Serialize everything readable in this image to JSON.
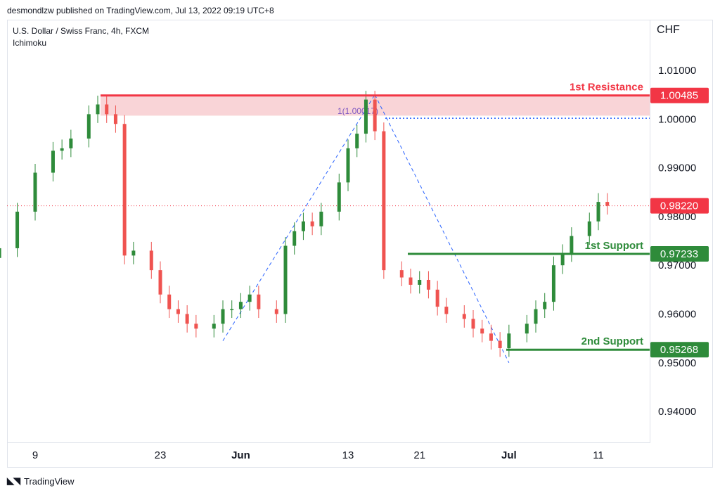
{
  "header": {
    "publisher": "desmondlzw published on TradingView.com, Jul 13, 2022 09:19 UTC+8"
  },
  "legend": {
    "symbol": "U.S. Dollar / Swiss Franc, 4h, FXCM",
    "indicator": "Ichimoku"
  },
  "footer": {
    "brand": "TradingView",
    "logo_icon": "tradingview-logo-icon"
  },
  "colors": {
    "up": "#26a69a",
    "up_candle": "#2e8b3a",
    "down": "#ef5350",
    "resistance": "#f23645",
    "support": "#2e8b3a",
    "fib": "#2962ff",
    "current": "#f23645"
  },
  "chart_data": {
    "type": "line",
    "title": "",
    "xlabel": "",
    "ylabel": "CHF",
    "ylim": [
      0.935,
      1.017
    ],
    "yticks": [
      "1.01000",
      "1.00000",
      "0.99000",
      "0.98000",
      "0.97000",
      "0.96000",
      "0.95000",
      "0.94000"
    ],
    "xticks": [
      "9",
      "23",
      "Jun",
      "13",
      "21",
      "Jul",
      "11"
    ],
    "series": [
      {
        "x": [
          "May 5",
          "May 7",
          "May 9",
          "May 11",
          "May 12",
          "May 13",
          "May 15",
          "May 16",
          "May 17",
          "May 18",
          "May 19",
          "May 20",
          "May 22",
          "May 23",
          "May 24",
          "May 25",
          "May 26",
          "May 27",
          "May 29",
          "May 30",
          "May 31",
          "Jun 1",
          "Jun 2",
          "Jun 3",
          "Jun 5",
          "Jun 6",
          "Jun 7",
          "Jun 8",
          "Jun 9",
          "Jun 10",
          "Jun 12",
          "Jun 13",
          "Jun 14",
          "Jun 15",
          "Jun 16",
          "Jun 17",
          "Jun 19",
          "Jun 20",
          "Jun 21",
          "Jun 22",
          "Jun 23",
          "Jun 24",
          "Jun 26",
          "Jun 27",
          "Jun 28",
          "Jun 29",
          "Jun 30",
          "Jul 1",
          "Jul 3",
          "Jul 4",
          "Jul 5",
          "Jul 6",
          "Jul 7",
          "Jul 8",
          "Jul 10",
          "Jul 11",
          "Jul 12"
        ],
        "values": [
          0.9735,
          0.981,
          0.989,
          0.9935,
          0.994,
          0.996,
          1.001,
          1.003,
          1.001,
          0.999,
          0.972,
          0.973,
          0.969,
          0.964,
          0.961,
          0.96,
          0.958,
          0.957,
          0.958,
          0.961,
          0.961,
          0.9625,
          0.964,
          0.961,
          0.96,
          0.974,
          0.977,
          0.979,
          0.978,
          0.981,
          0.987,
          0.994,
          0.997,
          1.004,
          0.9975,
          0.969,
          0.9675,
          0.966,
          0.967,
          0.965,
          0.9615,
          0.96,
          0.959,
          0.957,
          0.956,
          0.9545,
          0.953,
          0.956,
          0.958,
          0.961,
          0.9625,
          0.97,
          0.9725,
          0.976,
          0.979,
          0.983,
          0.9822
        ]
      }
    ],
    "current_price": "0.98220",
    "levels": [
      {
        "name": "1st Resistance",
        "price": "1.00485",
        "value": 1.00485,
        "zone_bottom": 1.0007
      },
      {
        "name": "1st Support",
        "price": "0.97233",
        "value": 0.97233
      },
      {
        "name": "2nd Support",
        "price": "0.95268",
        "value": 0.95268
      }
    ],
    "fib_label": "1(1.00017)",
    "fib_level": 1.00017,
    "fib_points": [
      {
        "x": "May 30",
        "y": 0.9545
      },
      {
        "x": "Jun 16",
        "y": 1.005
      },
      {
        "x": "Jul 1",
        "y": 0.95
      }
    ]
  }
}
